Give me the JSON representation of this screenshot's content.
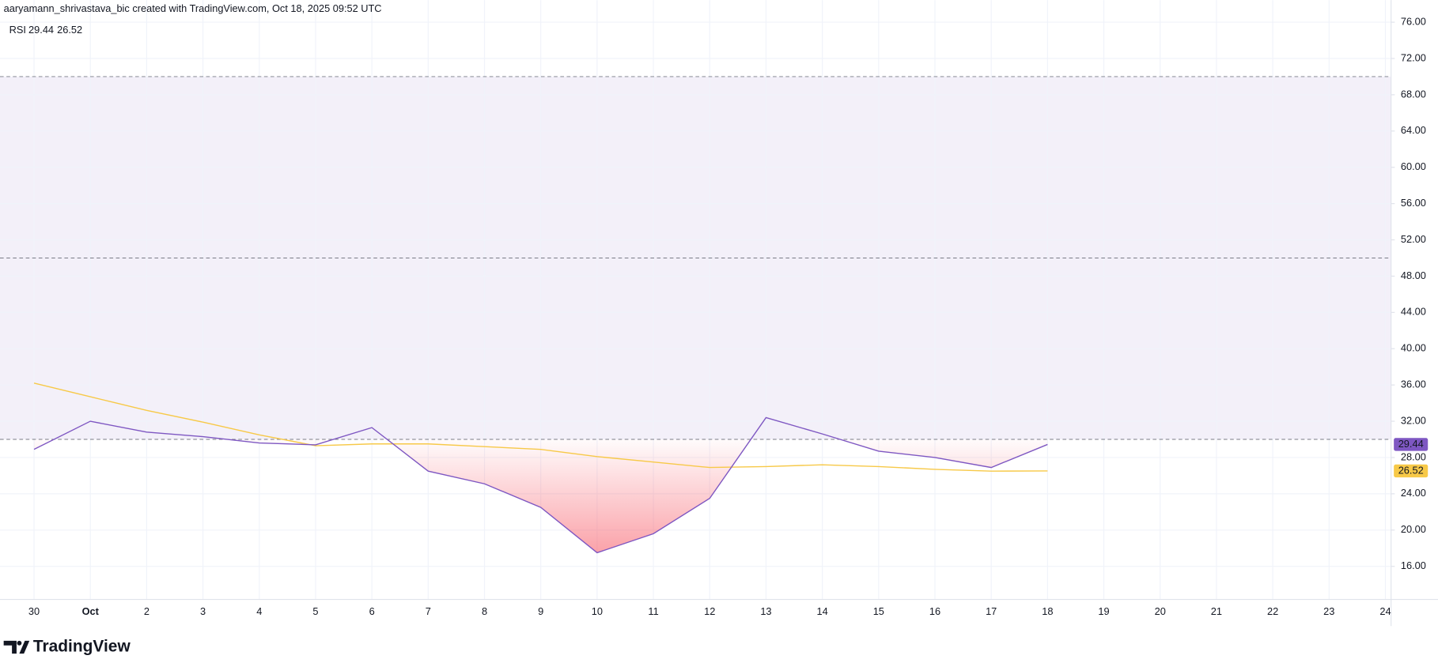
{
  "header": {
    "text": "aaryamann_shrivastava_bic created with TradingView.com, Oct 18, 2025 09:52 UTC"
  },
  "footer": {
    "brand": "TradingView"
  },
  "chart_data": {
    "type": "line",
    "indicator": "RSI",
    "categories": [
      "30",
      "Oct",
      "2",
      "3",
      "4",
      "5",
      "6",
      "7",
      "8",
      "9",
      "10",
      "11",
      "12",
      "13",
      "14",
      "15",
      "16",
      "17",
      "18",
      "19",
      "20",
      "21",
      "22",
      "23",
      "24"
    ],
    "series": [
      {
        "color": "#7e57c2",
        "values": [
          28.9,
          32.0,
          30.8,
          30.3,
          29.6,
          29.4,
          31.3,
          26.5,
          25.1,
          22.5,
          17.5,
          19.6,
          23.5,
          32.4,
          30.6,
          28.7,
          28.0,
          26.9,
          29.44,
          null,
          null,
          null,
          null,
          null,
          null
        ]
      },
      {
        "color": "#f7c948",
        "values": [
          36.2,
          34.7,
          33.2,
          31.9,
          30.5,
          29.3,
          29.5,
          29.5,
          29.2,
          28.9,
          28.1,
          27.5,
          26.9,
          27.0,
          27.2,
          27.0,
          26.7,
          26.5,
          26.52,
          null,
          null,
          null,
          null,
          null,
          null
        ]
      }
    ],
    "bands": [
      70,
      50,
      30
    ],
    "ylim": [
      14,
      78
    ],
    "yticks": [
      {
        "value": 16,
        "label": "16.00"
      },
      {
        "value": 20,
        "label": "20.00"
      },
      {
        "value": 24,
        "label": "24.00"
      },
      {
        "value": 28,
        "label": "28.00"
      },
      {
        "value": 32,
        "label": "32.00"
      },
      {
        "value": 36,
        "label": "36.00"
      },
      {
        "value": 40,
        "label": "40.00"
      },
      {
        "value": 44,
        "label": "44.00"
      },
      {
        "value": 48,
        "label": "48.00"
      },
      {
        "value": 52,
        "label": "52.00"
      },
      {
        "value": 56,
        "label": "56.00"
      },
      {
        "value": 60,
        "label": "60.00"
      },
      {
        "value": 64,
        "label": "64.00"
      },
      {
        "value": 68,
        "label": "68.00"
      },
      {
        "value": 72,
        "label": "72.00"
      },
      {
        "value": 76,
        "label": "76.00"
      }
    ],
    "grid": true
  }
}
